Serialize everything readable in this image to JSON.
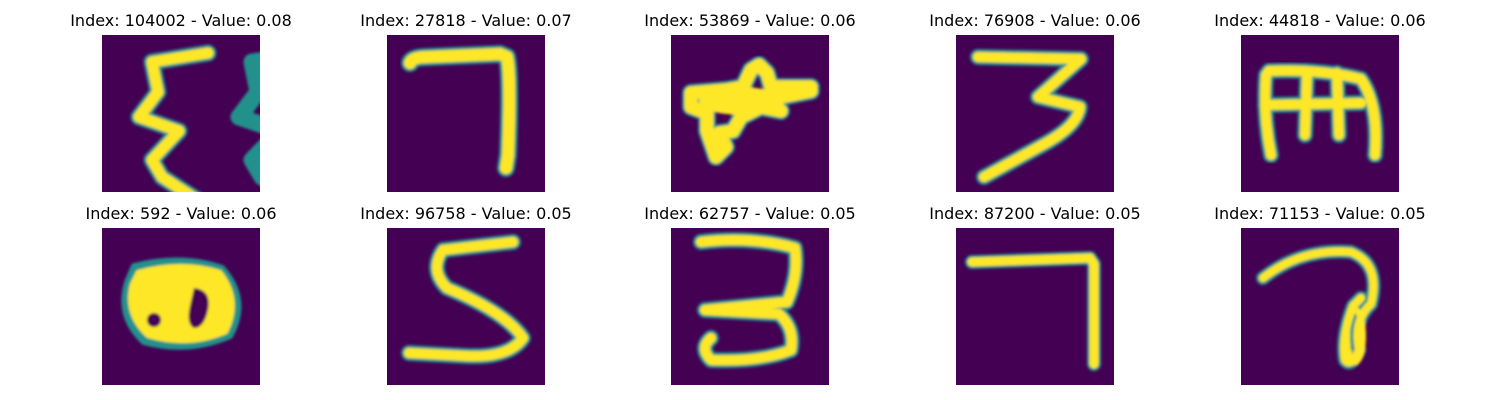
{
  "background": "#440154",
  "stroke_color": "#fde725",
  "edge_color": "#21918c",
  "panels": [
    {
      "title": "Index: 104002 - Value: 0.08"
    },
    {
      "title": "Index: 27818 - Value: 0.07"
    },
    {
      "title": "Index: 53869 - Value: 0.06"
    },
    {
      "title": "Index: 76908 - Value: 0.06"
    },
    {
      "title": "Index: 44818 - Value: 0.06"
    },
    {
      "title": "Index: 592 - Value: 0.06"
    },
    {
      "title": "Index: 96758 - Value: 0.05"
    },
    {
      "title": "Index: 62757 - Value: 0.05"
    },
    {
      "title": "Index: 87200 - Value: 0.05"
    },
    {
      "title": "Index: 71153 - Value: 0.05"
    }
  ]
}
